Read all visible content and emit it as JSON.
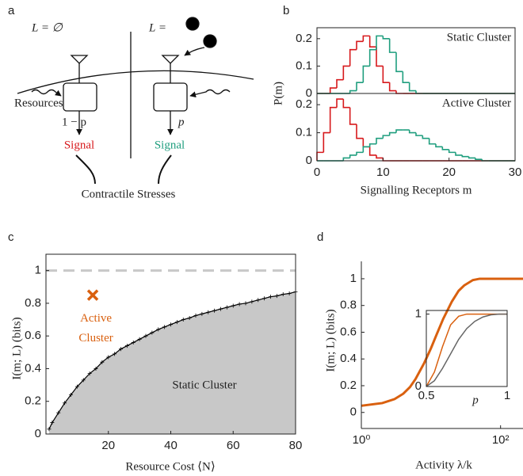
{
  "panel_labels": [
    "a",
    "b",
    "c",
    "d"
  ],
  "diagram": {
    "left_condition": "L = ∅",
    "right_condition": "L =",
    "resources": "Resources",
    "left_prob": "1 − p",
    "right_prob": "p",
    "left_signal": "Signal",
    "right_signal": "Signal",
    "stresses": "Contractile Stresses"
  },
  "chart_data": [
    {
      "type": "histogram",
      "annotation": "Static Cluster",
      "ylabel": "P(m)",
      "bins": [
        0,
        1,
        2,
        3,
        4,
        5,
        6,
        7,
        8,
        9,
        10,
        11,
        12,
        13,
        14,
        15,
        16,
        17,
        18,
        19,
        20,
        21,
        22,
        23,
        24,
        25,
        26,
        27,
        28,
        29,
        30
      ],
      "xlim": [
        0,
        30
      ],
      "ylim": [
        0,
        0.24
      ],
      "yticks": [
        0,
        0.1,
        0.2
      ],
      "series": [
        {
          "color": "#d7191c",
          "values": [
            0,
            0,
            0.02,
            0.05,
            0.1,
            0.16,
            0.19,
            0.21,
            0.17,
            0.1,
            0.04,
            0.01,
            0,
            0,
            0,
            0,
            0,
            0,
            0,
            0,
            0,
            0,
            0,
            0,
            0,
            0,
            0,
            0,
            0,
            0
          ]
        },
        {
          "color": "#1f9e7e",
          "values": [
            0,
            0,
            0,
            0,
            0,
            0.01,
            0.04,
            0.1,
            0.16,
            0.21,
            0.2,
            0.15,
            0.08,
            0.04,
            0.01,
            0,
            0,
            0,
            0,
            0,
            0,
            0,
            0,
            0,
            0,
            0,
            0,
            0,
            0,
            0
          ]
        }
      ]
    },
    {
      "type": "histogram",
      "annotation": "Active Cluster",
      "xlabel": "Signalling Receptors m",
      "bins": [
        0,
        1,
        2,
        3,
        4,
        5,
        6,
        7,
        8,
        9,
        10,
        11,
        12,
        13,
        14,
        15,
        16,
        17,
        18,
        19,
        20,
        21,
        22,
        23,
        24,
        25,
        26,
        27,
        28,
        29,
        30
      ],
      "xlim": [
        0,
        30
      ],
      "ylim": [
        0,
        0.24
      ],
      "xticks": [
        0,
        10,
        20,
        30
      ],
      "yticks": [
        0,
        0.1,
        0.2
      ],
      "series": [
        {
          "color": "#d7191c",
          "values": [
            0.03,
            0.1,
            0.19,
            0.22,
            0.19,
            0.13,
            0.08,
            0.05,
            0.02,
            0.01,
            0,
            0,
            0,
            0,
            0,
            0,
            0,
            0,
            0,
            0,
            0,
            0,
            0,
            0,
            0,
            0,
            0,
            0,
            0,
            0
          ]
        },
        {
          "color": "#1f9e7e",
          "values": [
            0,
            0,
            0,
            0,
            0.01,
            0.02,
            0.03,
            0.05,
            0.06,
            0.08,
            0.09,
            0.1,
            0.11,
            0.11,
            0.1,
            0.09,
            0.08,
            0.06,
            0.05,
            0.04,
            0.03,
            0.02,
            0.015,
            0.01,
            0.005,
            0,
            0,
            0,
            0,
            0
          ]
        }
      ]
    },
    {
      "type": "area",
      "xlabel": "Resource Cost ⟨N⟩",
      "ylabel": "I(m; L) (bits)",
      "annotation": "Static Cluster",
      "x": [
        1,
        2,
        4,
        6,
        8,
        10,
        12,
        14,
        16,
        18,
        20,
        22,
        24,
        26,
        28,
        30,
        32,
        34,
        36,
        38,
        40,
        42,
        44,
        46,
        48,
        50,
        52,
        54,
        56,
        58,
        60,
        62,
        64,
        66,
        68,
        70,
        72,
        74,
        76,
        78,
        80
      ],
      "values": [
        0.03,
        0.07,
        0.13,
        0.19,
        0.24,
        0.29,
        0.33,
        0.37,
        0.4,
        0.44,
        0.47,
        0.49,
        0.52,
        0.54,
        0.56,
        0.58,
        0.6,
        0.62,
        0.64,
        0.655,
        0.67,
        0.685,
        0.7,
        0.71,
        0.725,
        0.735,
        0.745,
        0.755,
        0.765,
        0.775,
        0.785,
        0.795,
        0.8,
        0.81,
        0.82,
        0.83,
        0.84,
        0.845,
        0.855,
        0.86,
        0.87
      ],
      "color": "#000000",
      "fill": "#c8c8c8",
      "hline": 1,
      "highlight": {
        "x": 15,
        "y": 0.85,
        "color": "#d9600f",
        "label": [
          "Active",
          "Cluster"
        ]
      },
      "xlim": [
        0,
        80
      ],
      "ylim": [
        0,
        1.1
      ],
      "xticks": [
        20,
        40,
        60,
        80
      ],
      "yticks": [
        0,
        0.2,
        0.4,
        0.6,
        0.8,
        1
      ]
    },
    {
      "type": "line",
      "xlabel": "Activity λ/k",
      "ylabel": "I(m; L) (bits)",
      "xscale": "log",
      "x": [
        1,
        2,
        3,
        4,
        5,
        6,
        8,
        10,
        12,
        15,
        20,
        25,
        30,
        40,
        50,
        100,
        210
      ],
      "values": [
        0.05,
        0.07,
        0.1,
        0.14,
        0.19,
        0.25,
        0.37,
        0.48,
        0.58,
        0.7,
        0.83,
        0.91,
        0.95,
        0.99,
        1,
        1,
        1
      ],
      "color": "#d9600f",
      "xlim": [
        1,
        210
      ],
      "ylim": [
        -0.12,
        1.13
      ],
      "xticks": [
        {
          "value": 1,
          "label": "10⁰"
        },
        {
          "value": 100,
          "label": "10²"
        }
      ],
      "yticks": [
        0,
        0.2,
        0.4,
        0.6,
        0.8,
        1
      ]
    },
    {
      "type": "line",
      "xlabel": "p",
      "x": [
        0.5,
        0.55,
        0.6,
        0.65,
        0.7,
        0.75,
        0.8,
        0.85,
        0.9,
        0.95,
        1
      ],
      "series": [
        {
          "color": "#d9600f",
          "values": [
            0,
            0.2,
            0.55,
            0.85,
            0.97,
            1,
            1,
            1,
            1,
            1,
            1
          ]
        },
        {
          "color": "#666666",
          "values": [
            0,
            0.08,
            0.25,
            0.45,
            0.65,
            0.8,
            0.9,
            0.96,
            0.99,
            1,
            1
          ]
        }
      ],
      "xlim": [
        0.5,
        1
      ],
      "ylim": [
        0,
        1.05
      ],
      "xticks": [
        0.5,
        1
      ],
      "yticks": [
        0,
        1
      ]
    }
  ]
}
